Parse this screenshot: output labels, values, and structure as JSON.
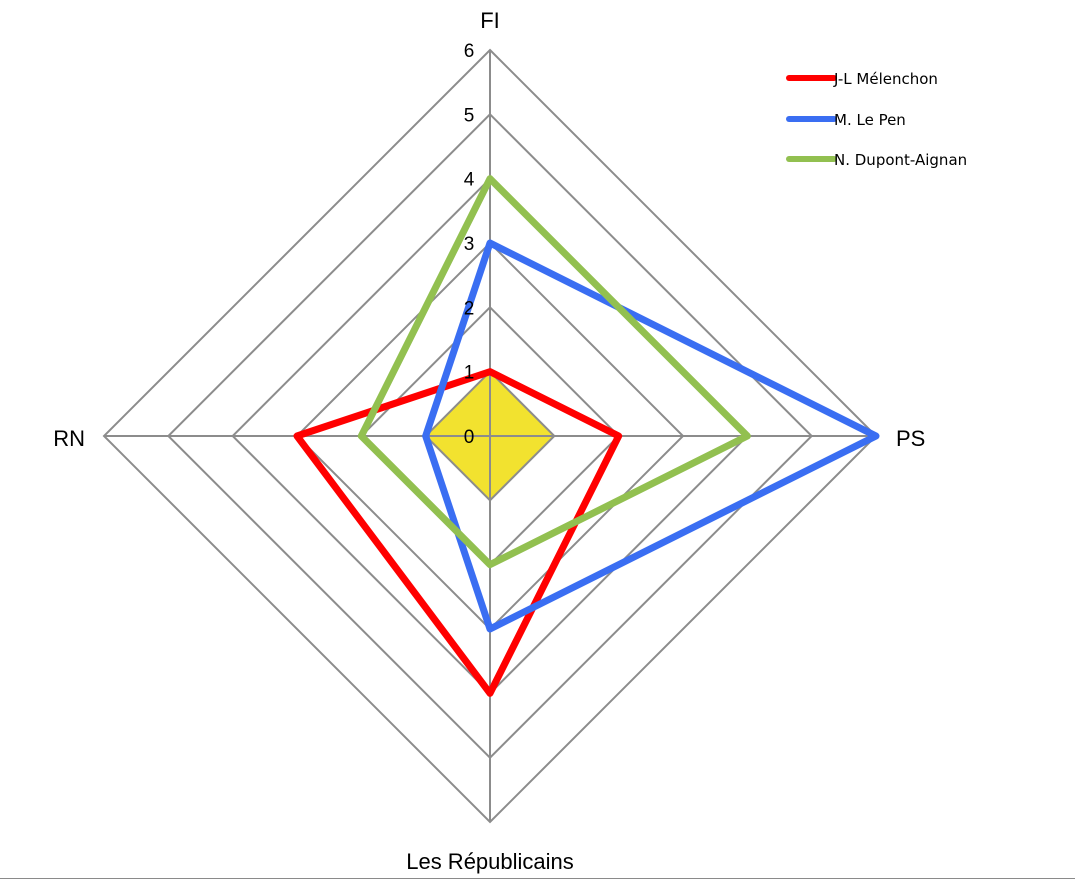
{
  "chart_data": {
    "type": "radar",
    "title": "",
    "axes": [
      "FI",
      "PS",
      "Les Républicains",
      "RN"
    ],
    "ticks": [
      0,
      1,
      2,
      3,
      4,
      5,
      6
    ],
    "range": [
      0,
      6
    ],
    "grid": true,
    "legend_position": "top-right",
    "filled_center": {
      "value": 1,
      "color": "#f2e22f"
    },
    "series": [
      {
        "name": "J-L Mélenchon",
        "color": "#ff0000",
        "values": [
          1,
          2,
          4,
          3
        ]
      },
      {
        "name": "M. Le Pen",
        "color": "#3a6ef2",
        "values": [
          3,
          6,
          3,
          1
        ]
      },
      {
        "name": "N. Dupont-Aignan",
        "color": "#92c050",
        "values": [
          4,
          4,
          2,
          2
        ]
      }
    ]
  }
}
